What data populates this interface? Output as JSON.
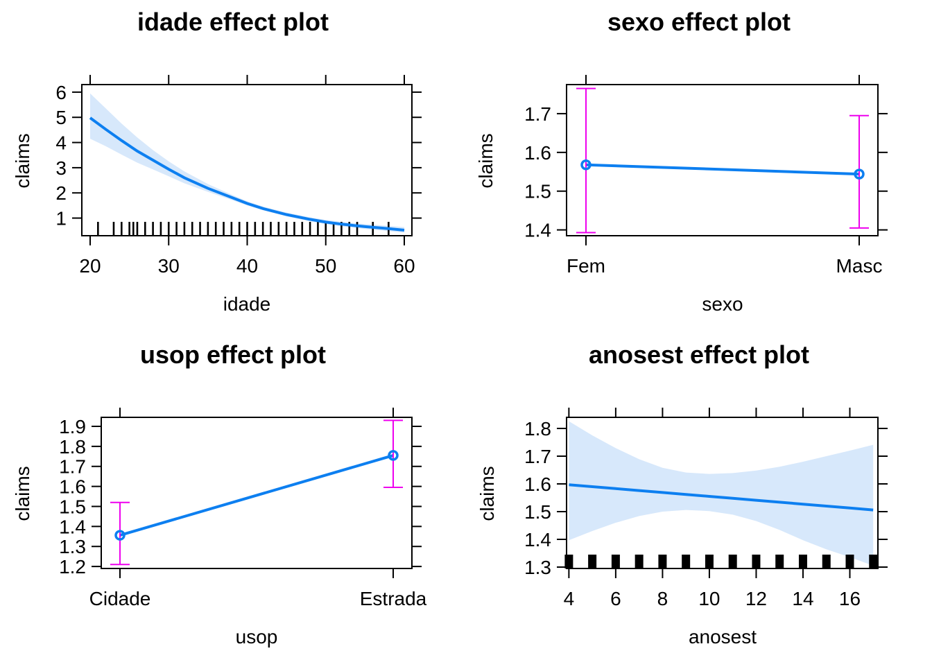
{
  "chart_data": [
    {
      "type": "line",
      "title": "idade effect plot",
      "xlabel": "idade",
      "ylabel": "claims",
      "xlim": [
        20,
        60
      ],
      "ylim": [
        0.3,
        6.3
      ],
      "xticks": [
        20,
        30,
        40,
        50,
        60
      ],
      "yticks": [
        1,
        2,
        3,
        4,
        5,
        6
      ],
      "series": [
        {
          "x": [
            20,
            22,
            24,
            26,
            28,
            30,
            32,
            35,
            38,
            40,
            42,
            45,
            48,
            50,
            52,
            55,
            58,
            60
          ],
          "values": [
            4.98,
            4.52,
            4.08,
            3.66,
            3.3,
            2.94,
            2.6,
            2.18,
            1.82,
            1.58,
            1.38,
            1.14,
            0.95,
            0.84,
            0.76,
            0.66,
            0.58,
            0.52
          ],
          "lower": [
            4.15,
            3.85,
            3.52,
            3.2,
            2.93,
            2.66,
            2.38,
            2.04,
            1.72,
            1.5,
            1.31,
            1.07,
            0.87,
            0.76,
            0.67,
            0.57,
            0.48,
            0.42
          ],
          "upper": [
            5.95,
            5.35,
            4.75,
            4.2,
            3.7,
            3.25,
            2.85,
            2.35,
            1.93,
            1.67,
            1.46,
            1.22,
            1.03,
            0.93,
            0.85,
            0.76,
            0.69,
            0.64
          ]
        }
      ],
      "rug": [
        21,
        23,
        24,
        25,
        25.5,
        26,
        27,
        28,
        29,
        30,
        31,
        32,
        33,
        34,
        35,
        36,
        37,
        38,
        39,
        40,
        41,
        42,
        43,
        44,
        45,
        46,
        47,
        48,
        49,
        50,
        51,
        52,
        53,
        54,
        56,
        58
      ]
    },
    {
      "type": "line",
      "title": "sexo effect plot",
      "xlabel": "sexo",
      "ylabel": "claims",
      "categories": [
        "Fem",
        "Masc"
      ],
      "ylim": [
        1.385,
        1.775
      ],
      "yticks": [
        1.4,
        1.5,
        1.6,
        1.7
      ],
      "yticklabels": [
        "1.4",
        "1.5",
        "1.6",
        "1.7"
      ],
      "series": [
        {
          "values": [
            1.568,
            1.544
          ],
          "lower": [
            1.393,
            1.405
          ],
          "upper": [
            1.765,
            1.695
          ]
        }
      ]
    },
    {
      "type": "line",
      "title": "usop effect plot",
      "xlabel": "usop",
      "ylabel": "claims",
      "categories": [
        "Cidade",
        "Estrada"
      ],
      "ylim": [
        1.19,
        1.945
      ],
      "yticks": [
        1.2,
        1.3,
        1.4,
        1.5,
        1.6,
        1.7,
        1.8,
        1.9
      ],
      "yticklabels": [
        "1.2",
        "1.3",
        "1.4",
        "1.5",
        "1.6",
        "1.7",
        "1.8",
        "1.9"
      ],
      "series": [
        {
          "values": [
            1.356,
            1.755
          ],
          "lower": [
            1.21,
            1.595
          ],
          "upper": [
            1.52,
            1.93
          ]
        }
      ]
    },
    {
      "type": "line",
      "title": "anosest effect plot",
      "xlabel": "anosest",
      "ylabel": "claims",
      "xlim": [
        3.9,
        17.2
      ],
      "ylim": [
        1.295,
        1.84
      ],
      "xticks": [
        4,
        6,
        8,
        10,
        12,
        14,
        16
      ],
      "yticks": [
        1.3,
        1.4,
        1.5,
        1.6,
        1.7,
        1.8
      ],
      "yticklabels": [
        "1.3",
        "1.4",
        "1.5",
        "1.6",
        "1.7",
        "1.8"
      ],
      "series": [
        {
          "x": [
            4,
            5,
            6,
            7,
            8,
            9,
            10,
            11,
            12,
            13,
            14,
            15,
            16,
            17
          ],
          "values": [
            1.597,
            1.59,
            1.583,
            1.576,
            1.569,
            1.562,
            1.555,
            1.548,
            1.541,
            1.534,
            1.527,
            1.52,
            1.513,
            1.506
          ],
          "lower": [
            1.397,
            1.43,
            1.46,
            1.484,
            1.5,
            1.506,
            1.502,
            1.489,
            1.466,
            1.434,
            1.397,
            1.364,
            1.336,
            1.305
          ],
          "upper": [
            1.826,
            1.775,
            1.729,
            1.689,
            1.658,
            1.641,
            1.636,
            1.639,
            1.648,
            1.662,
            1.68,
            1.7,
            1.72,
            1.741
          ]
        }
      ],
      "rug": [
        4,
        5,
        6,
        7,
        8,
        9,
        10,
        11,
        12,
        13,
        14,
        15,
        16,
        17
      ]
    }
  ]
}
